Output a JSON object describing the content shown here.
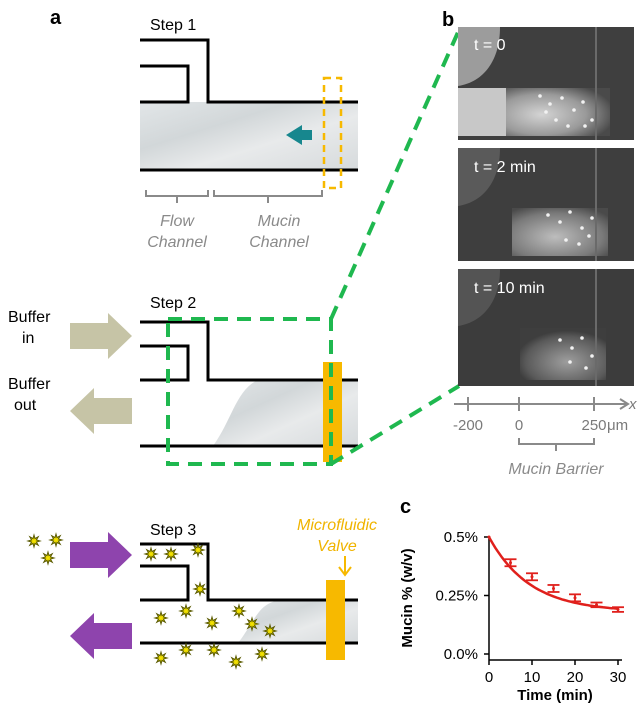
{
  "panels": {
    "a": "a",
    "b": "b",
    "c": "c"
  },
  "steps": {
    "step1": "Step 1",
    "step2": "Step 2",
    "step3": "Step 3"
  },
  "channel_labels": {
    "flow_line1": "Flow",
    "flow_line2": "Channel",
    "mucin_line1": "Mucin",
    "mucin_line2": "Channel"
  },
  "buffer": {
    "in_line1": "Buffer",
    "in_line2": "in",
    "out_line1": "Buffer",
    "out_line2": "out"
  },
  "valve": {
    "line1": "Microfluidic",
    "line2": "Valve"
  },
  "micrographs": {
    "t1": "t = 0",
    "t2": "t = 2 min",
    "t3": "t = 10 min"
  },
  "scale": {
    "tick_left": "-200",
    "tick_mid": "0",
    "tick_right": "250",
    "unit": "μm",
    "axis_name": "x",
    "barrier_label": "Mucin Barrier"
  },
  "colors": {
    "teal_arrow": "#17878e",
    "buffer_arrow": "#c6c4a6",
    "purple_arrow": "#8e44ad",
    "valve": "#f7b900",
    "dashed_green": "#1fb84f",
    "curve": "#e0201c",
    "star": "#f4e200"
  },
  "chart_data": {
    "type": "line",
    "xlabel": "Time (min)",
    "ylabel": "Mucin % (w/v)",
    "xlim": [
      0,
      30
    ],
    "ylim": [
      0,
      0.5
    ],
    "x_ticks": [
      "0",
      "10",
      "20",
      "30"
    ],
    "y_ticks": [
      "0.0%",
      "0.25%",
      "0.5%"
    ],
    "grid": false,
    "series": [
      {
        "x": [
          0,
          5,
          10,
          15,
          20,
          25,
          30
        ],
        "y": [
          0.5,
          0.39,
          0.33,
          0.28,
          0.24,
          0.21,
          0.19
        ],
        "err": [
          0,
          0.015,
          0.015,
          0.015,
          0.015,
          0.01,
          0.01
        ]
      }
    ]
  }
}
